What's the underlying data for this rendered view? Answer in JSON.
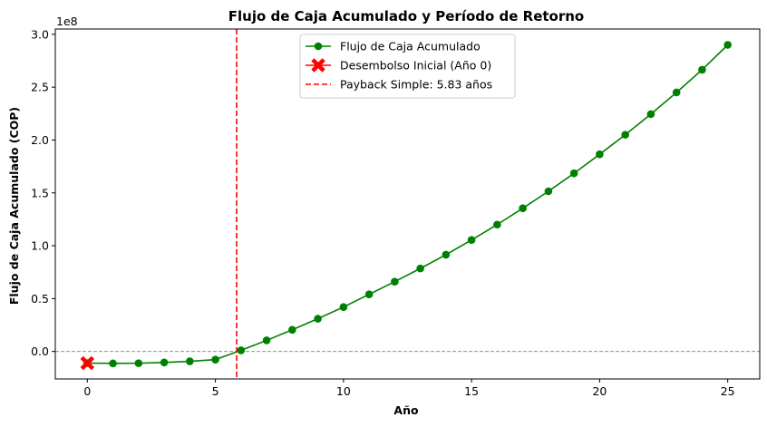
{
  "chart_data": {
    "type": "line",
    "title": "Flujo de Caja Acumulado y Período de Retorno",
    "xlabel": "Año",
    "ylabel": "Flujo de Caja Acumulado (COP)",
    "y_offset_text": "1e8",
    "xlim": [
      -1.25,
      26.25
    ],
    "ylim": [
      -0.26,
      3.05
    ],
    "y_scale_note": "values in units of 1e8",
    "x_ticks": [
      0,
      5,
      10,
      15,
      20,
      25
    ],
    "x_tick_labels": [
      "0",
      "5",
      "10",
      "15",
      "20",
      "25"
    ],
    "y_ticks": [
      0.0,
      0.5,
      1.0,
      1.5,
      2.0,
      2.5,
      3.0
    ],
    "y_tick_labels": [
      "0.0",
      "0.5",
      "1.0",
      "1.5",
      "2.0",
      "2.5",
      "3.0"
    ],
    "series": [
      {
        "name": "Flujo de Caja Acumulado",
        "color": "#008000",
        "marker": "circle",
        "x": [
          0,
          1,
          2,
          3,
          4,
          5,
          6,
          7,
          8,
          9,
          10,
          11,
          12,
          13,
          14,
          15,
          16,
          17,
          18,
          19,
          20,
          21,
          22,
          23,
          24,
          25
        ],
        "y": [
          -0.11,
          -0.113,
          -0.111,
          -0.104,
          -0.093,
          -0.077,
          0.011,
          0.105,
          0.205,
          0.31,
          0.42,
          0.54,
          0.66,
          0.785,
          0.915,
          1.055,
          1.2,
          1.355,
          1.515,
          1.685,
          1.865,
          2.05,
          2.245,
          2.45,
          2.665,
          2.9
        ]
      }
    ],
    "initial_point": {
      "name": "Desembolso Inicial (Año 0)",
      "color": "#ff0000",
      "marker": "X",
      "x": 0,
      "y": -0.11
    },
    "payback_line": {
      "name": "Payback Simple: 5.83 años",
      "color": "#ff0000",
      "x": 5.83
    },
    "zero_line": {
      "y": 0,
      "color": "#808080"
    },
    "legend_position": "top-center",
    "legend": [
      {
        "label": "Flujo de Caja Acumulado",
        "color": "#008000",
        "style": "line-circle"
      },
      {
        "label": "Desembolso Inicial (Año 0)",
        "color": "#ff0000",
        "style": "line-x"
      },
      {
        "label": "Payback Simple: 5.83 años",
        "color": "#ff0000",
        "style": "dashed"
      }
    ],
    "grid": false
  }
}
